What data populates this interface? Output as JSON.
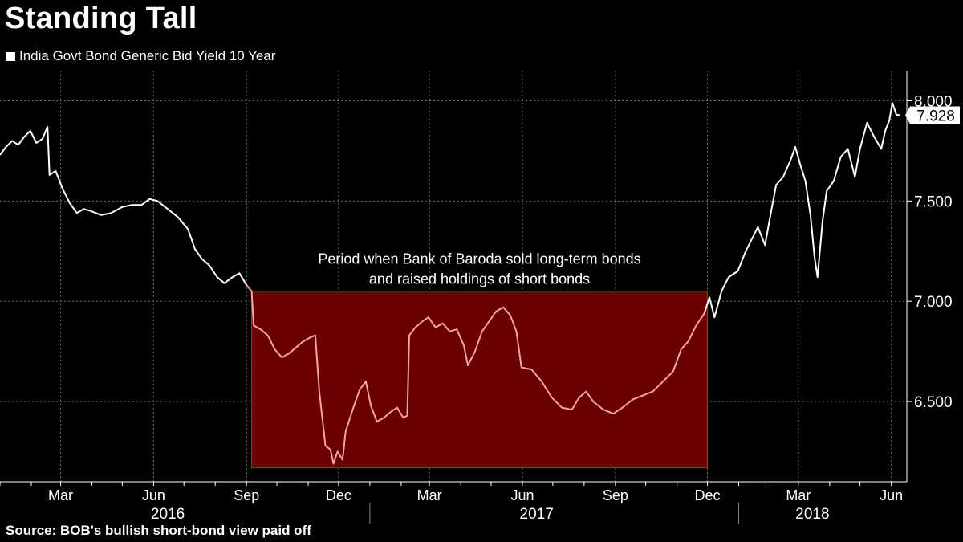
{
  "title": "Standing Tall",
  "source": "Source: BOB's bullish short-bond view paid off",
  "legend": {
    "label": "India Govt Bond Generic Bid Yield 10 Year",
    "color": "#ffffff"
  },
  "colors": {
    "background": "#000000",
    "line": "#ffffff",
    "highlight_fill": "#6b0000",
    "highlight_border": "#d01818",
    "highlight_line": "#f4a4a4",
    "grid": "#6e6e6e"
  },
  "chart_data": {
    "type": "line",
    "series": [
      {
        "name": "India Govt Bond Generic Bid Yield 10 Year",
        "last_value_label": "7.928",
        "points": [
          [
            "2016-01-01",
            7.73
          ],
          [
            "2016-01-07",
            7.77
          ],
          [
            "2016-01-13",
            7.8
          ],
          [
            "2016-01-19",
            7.78
          ],
          [
            "2016-01-25",
            7.82
          ],
          [
            "2016-01-31",
            7.85
          ],
          [
            "2016-02-06",
            7.79
          ],
          [
            "2016-02-12",
            7.81
          ],
          [
            "2016-02-17",
            7.87
          ],
          [
            "2016-02-19",
            7.63
          ],
          [
            "2016-02-25",
            7.65
          ],
          [
            "2016-03-03",
            7.56
          ],
          [
            "2016-03-10",
            7.49
          ],
          [
            "2016-03-17",
            7.44
          ],
          [
            "2016-03-24",
            7.46
          ],
          [
            "2016-03-31",
            7.45
          ],
          [
            "2016-04-10",
            7.43
          ],
          [
            "2016-04-20",
            7.44
          ],
          [
            "2016-05-01",
            7.47
          ],
          [
            "2016-05-10",
            7.48
          ],
          [
            "2016-05-20",
            7.48
          ],
          [
            "2016-05-28",
            7.51
          ],
          [
            "2016-06-05",
            7.5
          ],
          [
            "2016-06-15",
            7.46
          ],
          [
            "2016-06-25",
            7.42
          ],
          [
            "2016-07-05",
            7.36
          ],
          [
            "2016-07-12",
            7.26
          ],
          [
            "2016-07-19",
            7.21
          ],
          [
            "2016-07-26",
            7.18
          ],
          [
            "2016-08-03",
            7.12
          ],
          [
            "2016-08-10",
            7.09
          ],
          [
            "2016-08-18",
            7.12
          ],
          [
            "2016-08-25",
            7.14
          ],
          [
            "2016-09-01",
            7.08
          ],
          [
            "2016-09-06",
            7.05
          ],
          [
            "2016-09-08",
            6.88
          ],
          [
            "2016-09-15",
            6.86
          ],
          [
            "2016-09-22",
            6.83
          ],
          [
            "2016-09-29",
            6.76
          ],
          [
            "2016-10-06",
            6.72
          ],
          [
            "2016-10-13",
            6.74
          ],
          [
            "2016-10-20",
            6.77
          ],
          [
            "2016-10-27",
            6.8
          ],
          [
            "2016-11-03",
            6.82
          ],
          [
            "2016-11-08",
            6.83
          ],
          [
            "2016-11-12",
            6.55
          ],
          [
            "2016-11-18",
            6.28
          ],
          [
            "2016-11-23",
            6.26
          ],
          [
            "2016-11-26",
            6.19
          ],
          [
            "2016-11-30",
            6.25
          ],
          [
            "2016-12-05",
            6.21
          ],
          [
            "2016-12-08",
            6.35
          ],
          [
            "2016-12-15",
            6.46
          ],
          [
            "2016-12-22",
            6.56
          ],
          [
            "2016-12-28",
            6.6
          ],
          [
            "2017-01-02",
            6.48
          ],
          [
            "2017-01-08",
            6.4
          ],
          [
            "2017-01-15",
            6.42
          ],
          [
            "2017-01-22",
            6.45
          ],
          [
            "2017-01-28",
            6.47
          ],
          [
            "2017-02-03",
            6.42
          ],
          [
            "2017-02-07",
            6.43
          ],
          [
            "2017-02-09",
            6.83
          ],
          [
            "2017-02-15",
            6.87
          ],
          [
            "2017-02-22",
            6.9
          ],
          [
            "2017-02-28",
            6.92
          ],
          [
            "2017-03-07",
            6.87
          ],
          [
            "2017-03-14",
            6.89
          ],
          [
            "2017-03-21",
            6.85
          ],
          [
            "2017-03-28",
            6.86
          ],
          [
            "2017-04-04",
            6.78
          ],
          [
            "2017-04-08",
            6.68
          ],
          [
            "2017-04-15",
            6.75
          ],
          [
            "2017-04-22",
            6.85
          ],
          [
            "2017-04-29",
            6.9
          ],
          [
            "2017-05-06",
            6.95
          ],
          [
            "2017-05-13",
            6.97
          ],
          [
            "2017-05-20",
            6.93
          ],
          [
            "2017-05-26",
            6.85
          ],
          [
            "2017-05-31",
            6.67
          ],
          [
            "2017-06-10",
            6.66
          ],
          [
            "2017-06-20",
            6.6
          ],
          [
            "2017-06-30",
            6.52
          ],
          [
            "2017-07-10",
            6.47
          ],
          [
            "2017-07-20",
            6.46
          ],
          [
            "2017-07-27",
            6.52
          ],
          [
            "2017-08-03",
            6.55
          ],
          [
            "2017-08-10",
            6.5
          ],
          [
            "2017-08-20",
            6.46
          ],
          [
            "2017-08-30",
            6.44
          ],
          [
            "2017-09-08",
            6.47
          ],
          [
            "2017-09-18",
            6.51
          ],
          [
            "2017-09-28",
            6.53
          ],
          [
            "2017-10-08",
            6.55
          ],
          [
            "2017-10-18",
            6.6
          ],
          [
            "2017-10-28",
            6.65
          ],
          [
            "2017-11-05",
            6.76
          ],
          [
            "2017-11-12",
            6.8
          ],
          [
            "2017-11-20",
            6.88
          ],
          [
            "2017-11-28",
            6.94
          ],
          [
            "2017-12-03",
            7.02
          ],
          [
            "2017-12-08",
            6.92
          ],
          [
            "2017-12-15",
            7.05
          ],
          [
            "2017-12-22",
            7.12
          ],
          [
            "2017-12-31",
            7.15
          ],
          [
            "2018-01-08",
            7.25
          ],
          [
            "2018-01-15",
            7.32
          ],
          [
            "2018-01-20",
            7.37
          ],
          [
            "2018-01-27",
            7.28
          ],
          [
            "2018-02-01",
            7.42
          ],
          [
            "2018-02-07",
            7.58
          ],
          [
            "2018-02-14",
            7.62
          ],
          [
            "2018-02-21",
            7.7
          ],
          [
            "2018-02-26",
            7.77
          ],
          [
            "2018-03-03",
            7.68
          ],
          [
            "2018-03-08",
            7.6
          ],
          [
            "2018-03-13",
            7.43
          ],
          [
            "2018-03-17",
            7.22
          ],
          [
            "2018-03-20",
            7.12
          ],
          [
            "2018-03-25",
            7.4
          ],
          [
            "2018-03-29",
            7.55
          ],
          [
            "2018-04-05",
            7.6
          ],
          [
            "2018-04-12",
            7.72
          ],
          [
            "2018-04-19",
            7.76
          ],
          [
            "2018-04-26",
            7.62
          ],
          [
            "2018-05-01",
            7.76
          ],
          [
            "2018-05-08",
            7.89
          ],
          [
            "2018-05-15",
            7.82
          ],
          [
            "2018-05-22",
            7.76
          ],
          [
            "2018-05-26",
            7.85
          ],
          [
            "2018-05-30",
            7.9
          ],
          [
            "2018-06-02",
            7.99
          ],
          [
            "2018-06-06",
            7.93
          ],
          [
            "2018-06-10",
            7.928
          ]
        ]
      }
    ],
    "xlim": [
      "2016-01-01",
      "2018-06-10"
    ],
    "ylim": [
      6.1,
      8.15
    ],
    "y_ticks": [
      6.5,
      7.0,
      7.5,
      8.0
    ],
    "y_tick_labels": [
      "6.500",
      "7.000",
      "7.500",
      "8.000"
    ],
    "month_ticks": [
      {
        "date": "2016-03-01",
        "label": "Mar"
      },
      {
        "date": "2016-06-01",
        "label": "Jun"
      },
      {
        "date": "2016-09-01",
        "label": "Sep"
      },
      {
        "date": "2016-12-01",
        "label": "Dec"
      },
      {
        "date": "2017-03-01",
        "label": "Mar"
      },
      {
        "date": "2017-06-01",
        "label": "Jun"
      },
      {
        "date": "2017-09-01",
        "label": "Sep"
      },
      {
        "date": "2017-12-01",
        "label": "Dec"
      },
      {
        "date": "2018-03-01",
        "label": "Mar"
      },
      {
        "date": "2018-06-01",
        "label": "Jun"
      }
    ],
    "year_labels": [
      {
        "label": "2016",
        "center": "2016-06-15"
      },
      {
        "label": "2017",
        "center": "2017-06-15"
      },
      {
        "label": "2018",
        "center": "2018-03-15"
      }
    ],
    "year_separators": [
      "2017-01-01",
      "2018-01-01"
    ],
    "y_axis_position": "right",
    "grid": true,
    "highlight": {
      "x_start": "2016-09-06",
      "x_end": "2017-12-01",
      "y_low": 6.17,
      "y_high": 7.05,
      "annotation": [
        "Period when Bank of Baroda sold long-term bonds",
        "and raised holdings of short bonds"
      ]
    }
  }
}
